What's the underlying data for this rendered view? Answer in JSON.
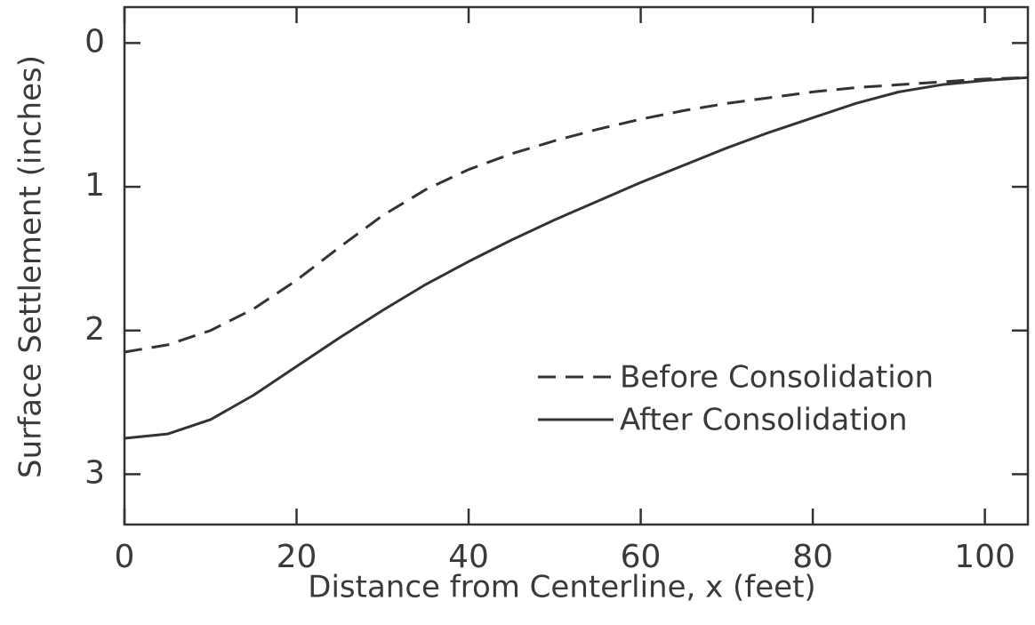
{
  "chart_data": {
    "type": "line",
    "xlabel": "Distance from Centerline, x (feet)",
    "ylabel": "Surface Settlement (inches)",
    "x": [
      0,
      5,
      10,
      15,
      20,
      25,
      30,
      35,
      40,
      45,
      50,
      55,
      60,
      65,
      70,
      75,
      80,
      85,
      90,
      95,
      100,
      105
    ],
    "series": [
      {
        "name": "Before Consolidation",
        "color": "#333333",
        "dashed": true,
        "values": [
          2.15,
          2.1,
          2.0,
          1.85,
          1.65,
          1.42,
          1.2,
          1.02,
          0.88,
          0.77,
          0.68,
          0.6,
          0.53,
          0.47,
          0.42,
          0.38,
          0.34,
          0.31,
          0.29,
          0.27,
          0.25,
          0.24
        ]
      },
      {
        "name": "After Consolidation",
        "color": "#333333",
        "dashed": false,
        "values": [
          2.75,
          2.72,
          2.62,
          2.45,
          2.25,
          2.05,
          1.86,
          1.68,
          1.52,
          1.37,
          1.23,
          1.1,
          0.97,
          0.85,
          0.73,
          0.62,
          0.52,
          0.42,
          0.34,
          0.29,
          0.26,
          0.24
        ]
      }
    ],
    "xlim": [
      0,
      105
    ],
    "xticks": [
      0,
      20,
      40,
      60,
      80,
      100
    ],
    "ylim": [
      -0.25,
      3.35
    ],
    "yticks": [
      0,
      1,
      2,
      3
    ],
    "y_inverted": true,
    "legend": "right"
  }
}
